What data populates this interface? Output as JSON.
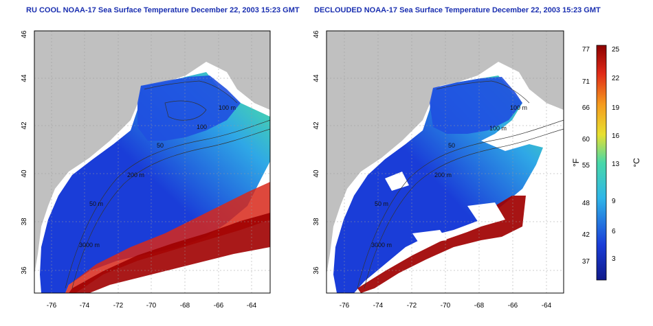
{
  "panels": [
    {
      "title": "RU COOL NOAA-17 Sea Surface Temperature December 22, 2003 15:23 GMT",
      "contour_labels": [
        "100 m",
        "100",
        "50",
        "200 m",
        "50 m",
        "3000 m"
      ]
    },
    {
      "title": "DECLOUDED NOAA-17 Sea Surface Temperature December 22, 2003 15:23 GMT",
      "contour_labels": [
        "100 m",
        "100 m",
        "50",
        "200 m",
        "50 m",
        "3000 m"
      ]
    }
  ],
  "axes": {
    "x_ticks": [
      "-76",
      "-74",
      "-72",
      "-70",
      "-68",
      "-66",
      "-64"
    ],
    "y_ticks": [
      "36",
      "38",
      "40",
      "42",
      "44",
      "46"
    ],
    "x_range": [
      -77.2,
      -63.2
    ],
    "y_range": [
      35,
      46
    ]
  },
  "colorbar": {
    "unit_f": "°F",
    "unit_c": "°C",
    "f_ticks": [
      "77",
      "71",
      "66",
      "60",
      "55",
      "48",
      "42",
      "37"
    ],
    "c_ticks": [
      "25",
      "22",
      "19",
      "16",
      "13",
      "9",
      "6",
      "3"
    ]
  },
  "colors": {
    "land": "#c0c0c0",
    "title": "#1a2fb0",
    "cold": "#1a3dd8",
    "warm": "#a80000"
  }
}
